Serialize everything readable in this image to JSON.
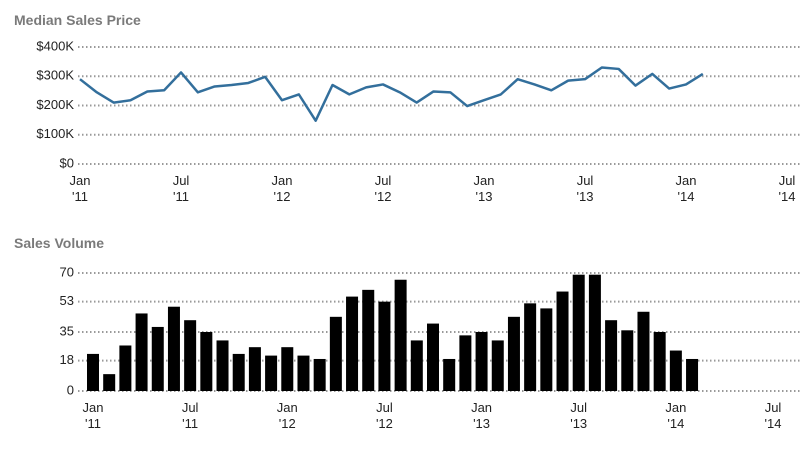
{
  "chart_data": [
    {
      "type": "line",
      "title": "Median Sales Price",
      "x": [
        "2011-01",
        "2011-02",
        "2011-03",
        "2011-04",
        "2011-05",
        "2011-06",
        "2011-07",
        "2011-08",
        "2011-09",
        "2011-10",
        "2011-11",
        "2011-12",
        "2012-01",
        "2012-02",
        "2012-03",
        "2012-04",
        "2012-05",
        "2012-06",
        "2012-07",
        "2012-08",
        "2012-09",
        "2012-10",
        "2012-11",
        "2012-12",
        "2013-01",
        "2013-02",
        "2013-03",
        "2013-04",
        "2013-05",
        "2013-06",
        "2013-07",
        "2013-08",
        "2013-09",
        "2013-10",
        "2013-11",
        "2013-12",
        "2014-01",
        "2014-02"
      ],
      "series": [
        {
          "name": "Median Sales Price",
          "color": "#336f9c",
          "values": [
            290000,
            245000,
            210000,
            218000,
            248000,
            252000,
            313000,
            245000,
            265000,
            270000,
            277000,
            298000,
            218000,
            238000,
            148000,
            270000,
            238000,
            262000,
            272000,
            245000,
            210000,
            248000,
            245000,
            198000,
            218000,
            238000,
            290000,
            272000,
            252000,
            285000,
            290000,
            330000,
            325000,
            268000,
            308000,
            258000,
            272000,
            308000
          ]
        }
      ],
      "xlim": [
        "2011-01",
        "2014-07"
      ],
      "xticks": [
        {
          "value": "2011-01",
          "label": "Jan '11"
        },
        {
          "value": "2011-07",
          "label": "Jul '11"
        },
        {
          "value": "2012-01",
          "label": "Jan '12"
        },
        {
          "value": "2012-07",
          "label": "Jul '12"
        },
        {
          "value": "2013-01",
          "label": "Jan '13"
        },
        {
          "value": "2013-07",
          "label": "Jul '13"
        },
        {
          "value": "2014-01",
          "label": "Jan '14"
        },
        {
          "value": "2014-07",
          "label": "Jul '14"
        }
      ],
      "ylim": [
        0,
        400000
      ],
      "yticks": [
        {
          "value": 0,
          "label": "$0"
        },
        {
          "value": 100000,
          "label": "$100K"
        },
        {
          "value": 200000,
          "label": "$200K"
        },
        {
          "value": 300000,
          "label": "$300K"
        },
        {
          "value": 400000,
          "label": "$400K"
        }
      ],
      "grid": true
    },
    {
      "type": "bar",
      "title": "Sales Volume",
      "x": [
        "2011-01",
        "2011-02",
        "2011-03",
        "2011-04",
        "2011-05",
        "2011-06",
        "2011-07",
        "2011-08",
        "2011-09",
        "2011-10",
        "2011-11",
        "2011-12",
        "2012-01",
        "2012-02",
        "2012-03",
        "2012-04",
        "2012-05",
        "2012-06",
        "2012-07",
        "2012-08",
        "2012-09",
        "2012-10",
        "2012-11",
        "2012-12",
        "2013-01",
        "2013-02",
        "2013-03",
        "2013-04",
        "2013-05",
        "2013-06",
        "2013-07",
        "2013-08",
        "2013-09",
        "2013-10",
        "2013-11",
        "2013-12",
        "2014-01",
        "2014-02"
      ],
      "series": [
        {
          "name": "Sales Volume",
          "color": "#000000",
          "values": [
            22,
            10,
            27,
            46,
            38,
            50,
            42,
            35,
            30,
            22,
            26,
            21,
            26,
            21,
            19,
            44,
            56,
            60,
            53,
            66,
            30,
            40,
            19,
            33,
            35,
            30,
            44,
            52,
            49,
            59,
            69,
            69,
            42,
            36,
            47,
            35,
            24,
            19
          ]
        }
      ],
      "xlim": [
        "2011-01",
        "2014-07"
      ],
      "xticks": [
        {
          "value": "2011-01",
          "label": "Jan '11"
        },
        {
          "value": "2011-07",
          "label": "Jul '11"
        },
        {
          "value": "2012-01",
          "label": "Jan '12"
        },
        {
          "value": "2012-07",
          "label": "Jul '12"
        },
        {
          "value": "2013-01",
          "label": "Jan '13"
        },
        {
          "value": "2013-07",
          "label": "Jul '13"
        },
        {
          "value": "2014-01",
          "label": "Jan '14"
        },
        {
          "value": "2014-07",
          "label": "Jul '14"
        }
      ],
      "ylim": [
        0,
        70
      ],
      "yticks": [
        0,
        18,
        35,
        53,
        70
      ],
      "grid": true
    }
  ]
}
